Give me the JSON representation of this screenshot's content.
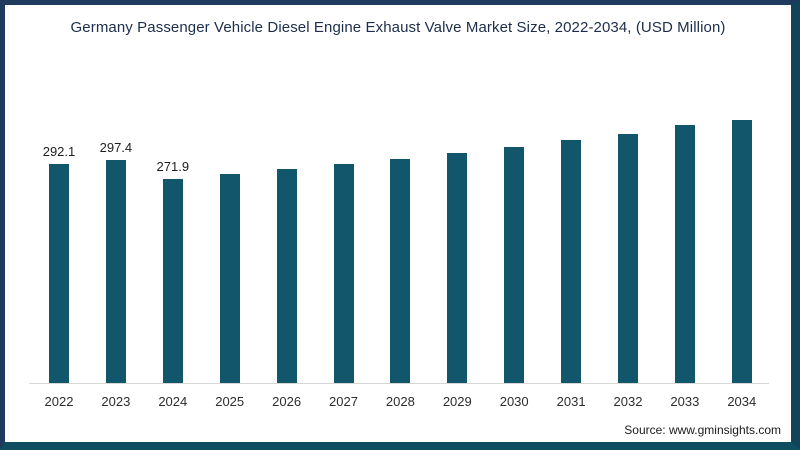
{
  "page": {
    "title": "Germany Passenger Vehicle Diesel Engine Exhaust Valve Market Size, 2022-2034, (USD Million)",
    "source": "Source: www.gminsights.com"
  },
  "colors": {
    "bar": "#12566c",
    "frame": "#1e3a5c",
    "title_text": "#1c2e4a",
    "axis_line": "#d6d6d6"
  },
  "chart_data": {
    "type": "bar",
    "title": "Germany Passenger Vehicle Diesel Engine Exhaust Valve Market Size, 2022-2034, (USD Million)",
    "unit": "USD Million",
    "categories": [
      "2022",
      "2023",
      "2024",
      "2025",
      "2026",
      "2027",
      "2028",
      "2029",
      "2030",
      "2031",
      "2032",
      "2033",
      "2034"
    ],
    "values": [
      292.1,
      297.4,
      271.9,
      278.5,
      285.3,
      291.9,
      298.6,
      307.2,
      315.3,
      323.8,
      332.5,
      343.6,
      350.4
    ],
    "data_labels": [
      "292.1",
      "297.4",
      "271.9",
      "",
      "",
      "",
      "",
      "",
      "",
      "",
      "",
      "",
      ""
    ],
    "xlabel": "",
    "ylabel": "",
    "ylim": [
      0,
      380
    ],
    "grid": false,
    "legend": false,
    "y_axis_visible": false,
    "bar_color": "#12566c"
  }
}
